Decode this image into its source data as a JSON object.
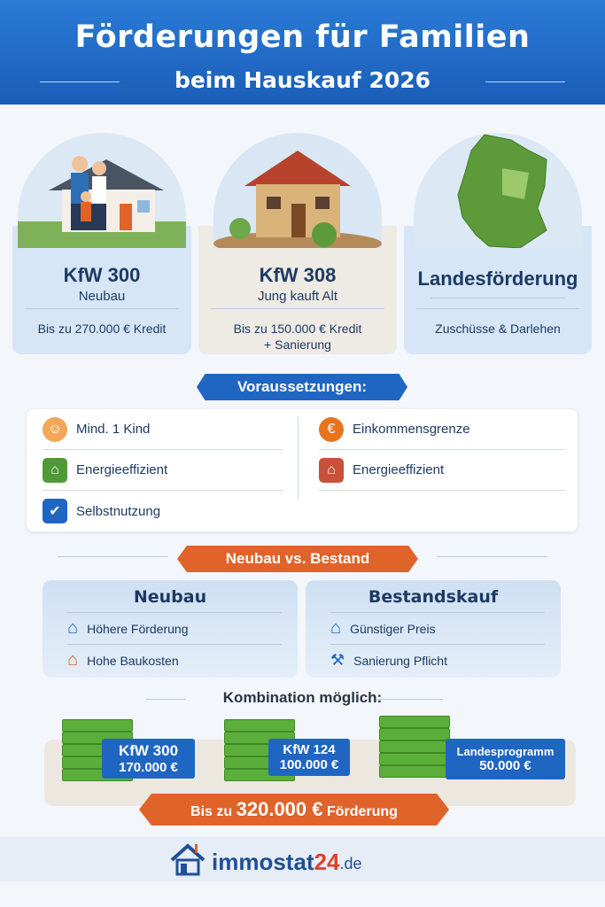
{
  "header": {
    "title": "Förderungen für Familien",
    "subtitle": "beim Hauskauf 2026"
  },
  "programs": [
    {
      "name": "KfW 300",
      "subtitle": "Neubau",
      "detail": "Bis zu 270.000 € Kredit",
      "detail2": ""
    },
    {
      "name": "KfW 308",
      "subtitle": "Jung kauft Alt",
      "detail": "Bis zu 150.000 € Kredit",
      "detail2": "+ Sanierung"
    },
    {
      "name": "Landesförderung",
      "subtitle": "",
      "detail": "Zuschüsse & Darlehen",
      "detail2": ""
    }
  ],
  "requirements": {
    "title": "Voraussetzungen:",
    "left": [
      "Mind. 1 Kind",
      "Energieeffizient",
      "Selbstnutzung"
    ],
    "right": [
      "Einkommensgrenze",
      "Energieeffizient"
    ]
  },
  "comparison": {
    "title": "Neubau vs. Bestand",
    "neubau": {
      "title": "Neubau",
      "items": [
        "Höhere Förderung",
        "Hohe Baukosten"
      ]
    },
    "bestand": {
      "title": "Bestandskauf",
      "items": [
        "Günstiger Preis",
        "Sanierung Pflicht"
      ]
    }
  },
  "combination": {
    "title": "Kombination möglich:",
    "items": [
      {
        "name": "KfW 300",
        "amount": "170.000 €"
      },
      {
        "name": "KfW 124",
        "amount": "100.000 €"
      },
      {
        "name": "Landesprogramm",
        "amount": "50.000 €"
      }
    ],
    "total_prefix": "Bis zu",
    "total_amount": "320.000 €",
    "total_suffix": "Förderung"
  },
  "footer": {
    "logo_text": "immostat",
    "logo_number": "24",
    "logo_tld": ".de"
  },
  "colors": {
    "primary": "#1f66c2",
    "accent": "#e0632a",
    "green": "#5cae3a",
    "navy": "#1d3a63"
  }
}
